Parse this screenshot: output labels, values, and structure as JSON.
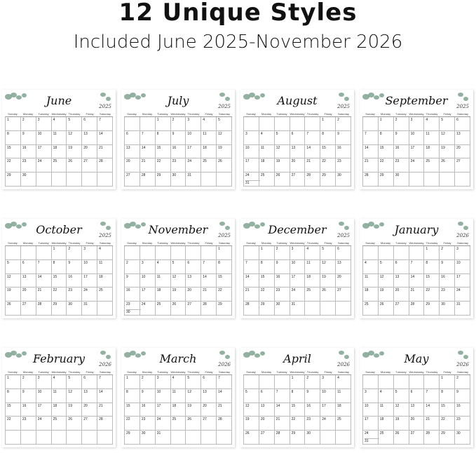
{
  "headline": "12 Unique Styles",
  "subheadline": "Included June 2025-November 2026",
  "weekdays": [
    "Sunday",
    "Monday",
    "Tuesday",
    "Wednesday",
    "Thursday",
    "Friday",
    "Saturday"
  ],
  "leaf_color": "#7fa38f",
  "calendars": [
    {
      "month": "June",
      "year": "2025",
      "month_index": 6
    },
    {
      "month": "July",
      "year": "2025",
      "month_index": 7
    },
    {
      "month": "August",
      "year": "2025",
      "month_index": 8
    },
    {
      "month": "September",
      "year": "2025",
      "month_index": 9
    },
    {
      "month": "October",
      "year": "2025",
      "month_index": 10
    },
    {
      "month": "November",
      "year": "2025",
      "month_index": 11
    },
    {
      "month": "December",
      "year": "2025",
      "month_index": 12
    },
    {
      "month": "January",
      "year": "2026",
      "month_index": 1
    },
    {
      "month": "February",
      "year": "2026",
      "month_index": 2
    },
    {
      "month": "March",
      "year": "2026",
      "month_index": 3
    },
    {
      "month": "April",
      "year": "2026",
      "month_index": 4
    },
    {
      "month": "May",
      "year": "2026",
      "month_index": 5
    }
  ]
}
